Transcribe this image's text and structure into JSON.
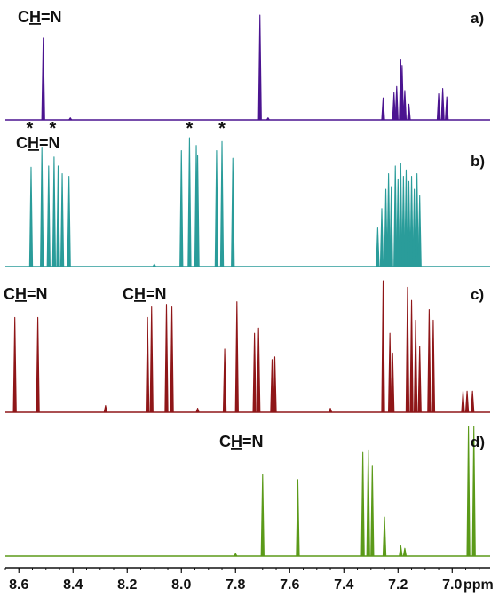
{
  "chart_data": {
    "type": "line",
    "title": "",
    "xlabel": "ppm",
    "ylabel": "",
    "x_reversed": true,
    "xlim": [
      8.65,
      6.86
    ],
    "xticks": [
      "8.6",
      "8.4",
      "8.2",
      "8.0",
      "7.8",
      "7.6",
      "7.4",
      "7.2",
      "7.0"
    ],
    "xtick_values": [
      8.6,
      8.4,
      8.2,
      8.0,
      7.8,
      7.6,
      7.4,
      7.2,
      7.0
    ],
    "grid": false,
    "legend": "none",
    "series": [
      {
        "panel": "a)",
        "color": "#4b1490",
        "annotations": [
          {
            "text": "CH=N",
            "underlined": "H"
          }
        ],
        "peaks": [
          {
            "ppm": 8.51,
            "intensity": 0.78
          },
          {
            "ppm": 8.41,
            "intensity": 0.02
          },
          {
            "ppm": 7.71,
            "intensity": 1.0
          },
          {
            "ppm": 7.68,
            "intensity": 0.02
          },
          {
            "ppm": 7.255,
            "intensity": 0.21
          },
          {
            "ppm": 7.215,
            "intensity": 0.26
          },
          {
            "ppm": 7.205,
            "intensity": 0.32
          },
          {
            "ppm": 7.19,
            "intensity": 0.58
          },
          {
            "ppm": 7.185,
            "intensity": 0.52
          },
          {
            "ppm": 7.175,
            "intensity": 0.28
          },
          {
            "ppm": 7.16,
            "intensity": 0.15
          },
          {
            "ppm": 7.05,
            "intensity": 0.25
          },
          {
            "ppm": 7.035,
            "intensity": 0.3
          },
          {
            "ppm": 7.02,
            "intensity": 0.22
          }
        ]
      },
      {
        "panel": "b)",
        "color": "#2a9c9a",
        "annotations": [
          {
            "text": "CH=N",
            "underlined": "H"
          }
        ],
        "markers": [
          {
            "text": "*",
            "ppm": 8.56
          },
          {
            "text": "*",
            "ppm": 8.475
          },
          {
            "text": "*",
            "ppm": 7.97
          },
          {
            "text": "*",
            "ppm": 7.85
          }
        ],
        "peaks": [
          {
            "ppm": 8.555,
            "intensity": 0.77
          },
          {
            "ppm": 8.515,
            "intensity": 0.92
          },
          {
            "ppm": 8.49,
            "intensity": 0.78
          },
          {
            "ppm": 8.47,
            "intensity": 0.85
          },
          {
            "ppm": 8.455,
            "intensity": 0.78
          },
          {
            "ppm": 8.44,
            "intensity": 0.72
          },
          {
            "ppm": 8.415,
            "intensity": 0.7
          },
          {
            "ppm": 8.1,
            "intensity": 0.02
          },
          {
            "ppm": 8.0,
            "intensity": 0.9
          },
          {
            "ppm": 7.97,
            "intensity": 1.0
          },
          {
            "ppm": 7.945,
            "intensity": 0.94
          },
          {
            "ppm": 7.94,
            "intensity": 0.86
          },
          {
            "ppm": 7.87,
            "intensity": 0.9
          },
          {
            "ppm": 7.85,
            "intensity": 0.97
          },
          {
            "ppm": 7.81,
            "intensity": 0.84
          },
          {
            "ppm": 7.275,
            "intensity": 0.3
          },
          {
            "ppm": 7.26,
            "intensity": 0.45
          },
          {
            "ppm": 7.245,
            "intensity": 0.6
          },
          {
            "ppm": 7.235,
            "intensity": 0.72
          },
          {
            "ppm": 7.225,
            "intensity": 0.62
          },
          {
            "ppm": 7.21,
            "intensity": 0.78
          },
          {
            "ppm": 7.2,
            "intensity": 0.68
          },
          {
            "ppm": 7.19,
            "intensity": 0.8
          },
          {
            "ppm": 7.18,
            "intensity": 0.7
          },
          {
            "ppm": 7.17,
            "intensity": 0.75
          },
          {
            "ppm": 7.16,
            "intensity": 0.66
          },
          {
            "ppm": 7.15,
            "intensity": 0.7
          },
          {
            "ppm": 7.14,
            "intensity": 0.6
          },
          {
            "ppm": 7.13,
            "intensity": 0.72
          },
          {
            "ppm": 7.12,
            "intensity": 0.55
          }
        ]
      },
      {
        "panel": "c)",
        "color": "#8f1618",
        "annotations": [
          {
            "text": "CH=N",
            "underlined": "H"
          },
          {
            "text": "CH=N",
            "underlined": "H"
          }
        ],
        "peaks": [
          {
            "ppm": 8.615,
            "intensity": 0.72
          },
          {
            "ppm": 8.53,
            "intensity": 0.72
          },
          {
            "ppm": 8.28,
            "intensity": 0.05
          },
          {
            "ppm": 8.125,
            "intensity": 0.72
          },
          {
            "ppm": 8.11,
            "intensity": 0.8
          },
          {
            "ppm": 8.055,
            "intensity": 0.82
          },
          {
            "ppm": 8.035,
            "intensity": 0.8
          },
          {
            "ppm": 7.94,
            "intensity": 0.03
          },
          {
            "ppm": 7.84,
            "intensity": 0.48
          },
          {
            "ppm": 7.795,
            "intensity": 0.84
          },
          {
            "ppm": 7.73,
            "intensity": 0.6
          },
          {
            "ppm": 7.715,
            "intensity": 0.64
          },
          {
            "ppm": 7.665,
            "intensity": 0.4
          },
          {
            "ppm": 7.655,
            "intensity": 0.42
          },
          {
            "ppm": 7.45,
            "intensity": 0.03
          },
          {
            "ppm": 7.255,
            "intensity": 1.0
          },
          {
            "ppm": 7.23,
            "intensity": 0.6
          },
          {
            "ppm": 7.22,
            "intensity": 0.45
          },
          {
            "ppm": 7.165,
            "intensity": 0.95
          },
          {
            "ppm": 7.15,
            "intensity": 0.85
          },
          {
            "ppm": 7.135,
            "intensity": 0.7
          },
          {
            "ppm": 7.12,
            "intensity": 0.5
          },
          {
            "ppm": 7.085,
            "intensity": 0.78
          },
          {
            "ppm": 7.07,
            "intensity": 0.7
          },
          {
            "ppm": 6.96,
            "intensity": 0.16
          },
          {
            "ppm": 6.945,
            "intensity": 0.16
          },
          {
            "ppm": 6.925,
            "intensity": 0.16
          }
        ]
      },
      {
        "panel": "d)",
        "color": "#5b9a19",
        "annotations": [
          {
            "text": "CH=N",
            "underlined": "H"
          }
        ],
        "peaks": [
          {
            "ppm": 7.8,
            "intensity": 0.02
          },
          {
            "ppm": 7.7,
            "intensity": 0.63
          },
          {
            "ppm": 7.57,
            "intensity": 0.59
          },
          {
            "ppm": 7.33,
            "intensity": 0.8
          },
          {
            "ppm": 7.31,
            "intensity": 0.82
          },
          {
            "ppm": 7.295,
            "intensity": 0.7
          },
          {
            "ppm": 7.25,
            "intensity": 0.3
          },
          {
            "ppm": 7.19,
            "intensity": 0.08
          },
          {
            "ppm": 7.175,
            "intensity": 0.06
          },
          {
            "ppm": 6.94,
            "intensity": 1.0
          },
          {
            "ppm": 6.92,
            "intensity": 1.0
          }
        ]
      }
    ]
  }
}
